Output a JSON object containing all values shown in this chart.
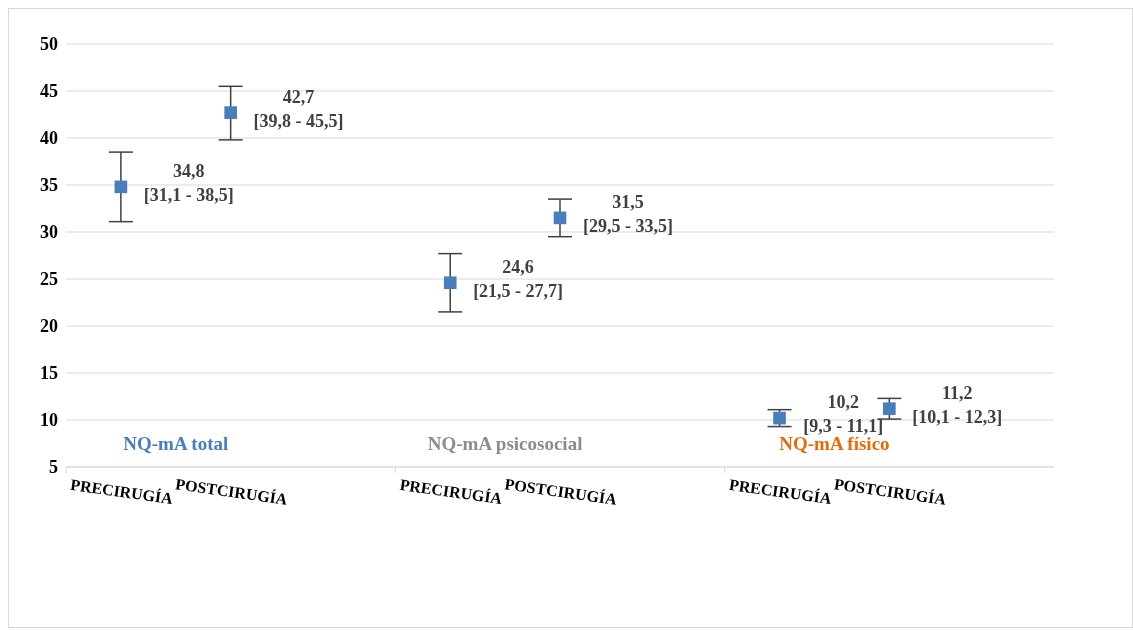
{
  "chart_data": {
    "type": "scatter",
    "categories": [
      "PRECIRUGÍA",
      "POSTCIRUGÍA",
      "PRECIRUGÍA",
      "POSTCIRUGÍA",
      "PRECIRUGÍA",
      "POSTCIRUGÍA"
    ],
    "values": [
      34.8,
      42.7,
      24.6,
      31.5,
      10.2,
      11.2
    ],
    "errors": [
      [
        31.1,
        38.5
      ],
      [
        39.8,
        45.5
      ],
      [
        21.5,
        27.7
      ],
      [
        29.5,
        33.5
      ],
      [
        9.3,
        11.1
      ],
      [
        10.1,
        12.3
      ]
    ],
    "value_labels": [
      "34,8\n[31,1 - 38,5]",
      "42,7\n[39,8 - 45,5]",
      "24,6\n[21,5 - 27,7]",
      "31,5\n[29,5 - 33,5]",
      "10,2\n[9,3 - 11,1]",
      "11,2\n[10,1 - 12,3]"
    ],
    "color": "#4a7ebb",
    "marker": "square",
    "grid": "y",
    "legend": false,
    "ylim": [
      5,
      50
    ],
    "yticks": [
      5,
      10,
      15,
      20,
      25,
      30,
      35,
      40,
      45,
      50
    ],
    "annotations": [
      "NQ-mA total",
      "NQ-mA psicosocial",
      "NQ-mA físico"
    ]
  }
}
